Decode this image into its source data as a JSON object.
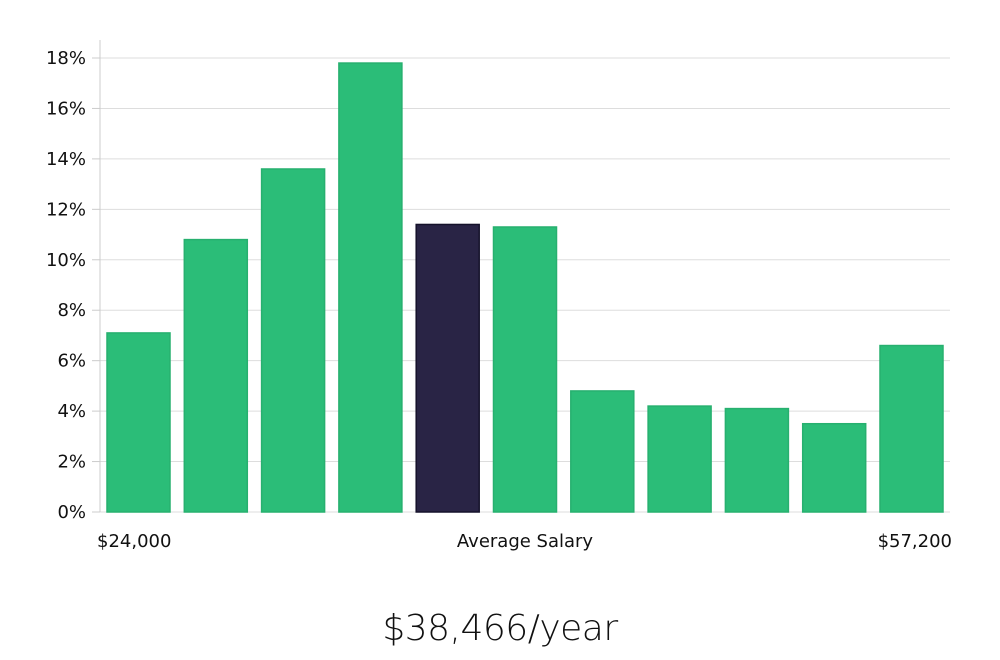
{
  "chart_data": {
    "type": "bar",
    "title": "",
    "xlabel": "Average Salary",
    "ylabel": "",
    "x_range_labels": {
      "min": "$24,000",
      "max": "$57,200"
    },
    "ylim": [
      0,
      18
    ],
    "yticks": [
      0,
      2,
      4,
      6,
      8,
      10,
      12,
      14,
      16,
      18
    ],
    "ytick_suffix": "%",
    "grid": true,
    "highlight_index": 4,
    "values": [
      7.1,
      10.8,
      13.6,
      17.8,
      11.4,
      11.3,
      4.8,
      4.2,
      4.1,
      3.5,
      6.6
    ]
  },
  "summary": {
    "salary_text": "$38,466/year"
  },
  "colors": {
    "bar": "#2bbd78",
    "bar_stroke": "#27b06f",
    "highlight": "#292445",
    "highlight_stroke": "#15122b",
    "grid": "#dddddd",
    "axis": "#cccccc",
    "text": "#111111"
  }
}
